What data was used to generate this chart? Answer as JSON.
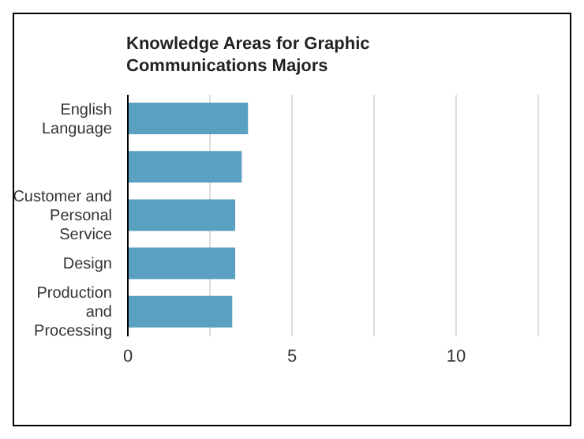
{
  "chart_data": {
    "type": "bar",
    "orientation": "horizontal",
    "title": "Knowledge Areas for Graphic Communications Majors",
    "categories": [
      "English Language",
      null,
      "Customer and Personal Service",
      "Design",
      "Production and Processing"
    ],
    "values": [
      3.66,
      3.47,
      3.27,
      3.27,
      3.18
    ],
    "color": "#5aa0c0",
    "xlim": [
      0,
      12.5
    ],
    "xticks": [
      0,
      {
        "value": 2.5,
        "label": null
      },
      5,
      {
        "value": 7.5,
        "label": null
      },
      10
    ],
    "grid": "x",
    "legend": false
  }
}
